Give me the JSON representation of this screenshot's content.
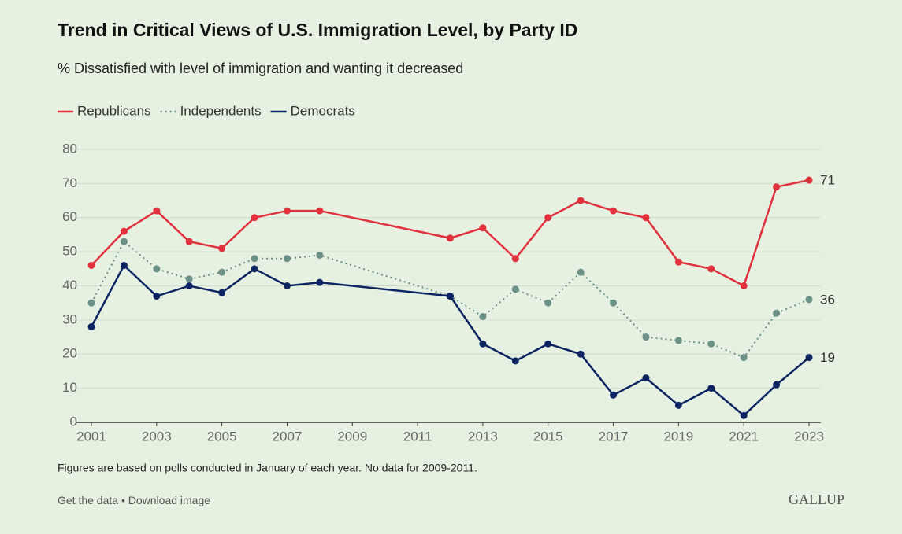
{
  "chart_data": {
    "type": "line",
    "title": "Trend in Critical Views of U.S. Immigration Level, by Party ID",
    "subtitle": "% Dissatisfied with level of immigration and wanting it decreased",
    "x": [
      2001,
      2002,
      2003,
      2004,
      2005,
      2006,
      2007,
      2008,
      2012,
      2013,
      2014,
      2015,
      2016,
      2017,
      2018,
      2019,
      2020,
      2021,
      2022,
      2023
    ],
    "series": [
      {
        "name": "Republicans",
        "color": "#e0313c",
        "dash": "solid",
        "values": [
          46,
          56,
          62,
          53,
          51,
          60,
          62,
          62,
          54,
          57,
          48,
          60,
          65,
          62,
          60,
          47,
          45,
          40,
          69,
          71
        ]
      },
      {
        "name": "Independents",
        "color": "#6b9088",
        "dash": "dotted",
        "values": [
          35,
          53,
          45,
          42,
          44,
          48,
          48,
          49,
          37,
          31,
          39,
          35,
          44,
          35,
          25,
          24,
          23,
          19,
          32,
          36
        ]
      },
      {
        "name": "Democrats",
        "color": "#0c2461",
        "dash": "solid",
        "values": [
          28,
          46,
          37,
          40,
          38,
          45,
          40,
          41,
          37,
          23,
          18,
          23,
          20,
          8,
          13,
          5,
          10,
          2,
          11,
          19
        ]
      }
    ],
    "xlim": [
      2001,
      2023
    ],
    "xticks": [
      2001,
      2003,
      2005,
      2007,
      2009,
      2011,
      2013,
      2015,
      2017,
      2019,
      2021,
      2023
    ],
    "ylim": [
      0,
      80
    ],
    "yticks": [
      0,
      10,
      20,
      30,
      40,
      50,
      60,
      70,
      80
    ],
    "grid": true,
    "legend": "top-left",
    "note": "Figures are based on polls conducted in January of each year. No data for 2009-2011.",
    "links": [
      "Get the data",
      "Download image"
    ],
    "separator": "•",
    "brand": "GALLUP"
  }
}
